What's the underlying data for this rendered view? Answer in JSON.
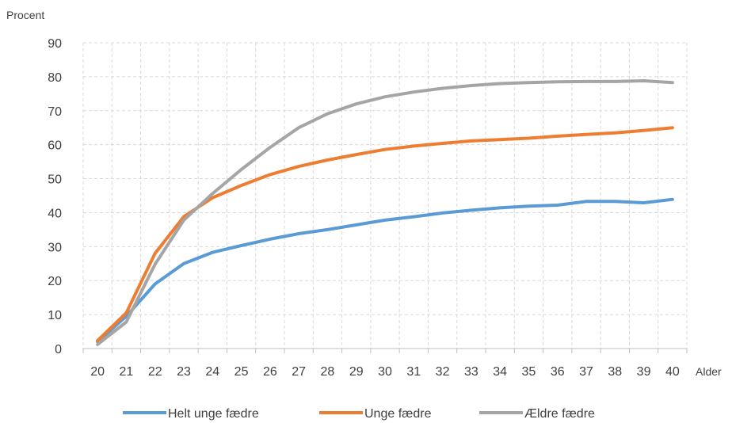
{
  "chart_data": {
    "type": "line",
    "ylabel": "Procent",
    "xlabel": "Alder",
    "ylim": [
      0,
      90
    ],
    "yticks": [
      0,
      10,
      20,
      30,
      40,
      50,
      60,
      70,
      80,
      90
    ],
    "categories": [
      "20",
      "21",
      "22",
      "23",
      "24",
      "25",
      "26",
      "27",
      "28",
      "29",
      "30",
      "31",
      "32",
      "33",
      "34",
      "35",
      "36",
      "37",
      "38",
      "39",
      "40"
    ],
    "grid": true,
    "legend_position": "bottom",
    "series": [
      {
        "name": "Helt unge fædre",
        "color": "#5B9BD5",
        "values": [
          2.0,
          9.5,
          19.0,
          25.0,
          28.3,
          30.3,
          32.2,
          33.8,
          35.0,
          36.4,
          37.8,
          38.8,
          39.9,
          40.7,
          41.4,
          41.9,
          42.2,
          43.3,
          43.3,
          42.9,
          43.9
        ]
      },
      {
        "name": "Unge fædre",
        "color": "#ED7D31",
        "values": [
          2.3,
          10.5,
          28.0,
          38.8,
          44.4,
          48.0,
          51.2,
          53.6,
          55.5,
          57.1,
          58.6,
          59.6,
          60.4,
          61.1,
          61.5,
          61.9,
          62.5,
          63.0,
          63.5,
          64.2,
          65.0
        ]
      },
      {
        "name": "Ældre fædre",
        "color": "#A5A5A5",
        "values": [
          1.2,
          7.8,
          24.8,
          37.8,
          45.6,
          52.7,
          59.2,
          65.0,
          69.1,
          72.0,
          74.1,
          75.5,
          76.6,
          77.4,
          78.0,
          78.3,
          78.5,
          78.6,
          78.6,
          78.8,
          78.3
        ]
      }
    ]
  }
}
